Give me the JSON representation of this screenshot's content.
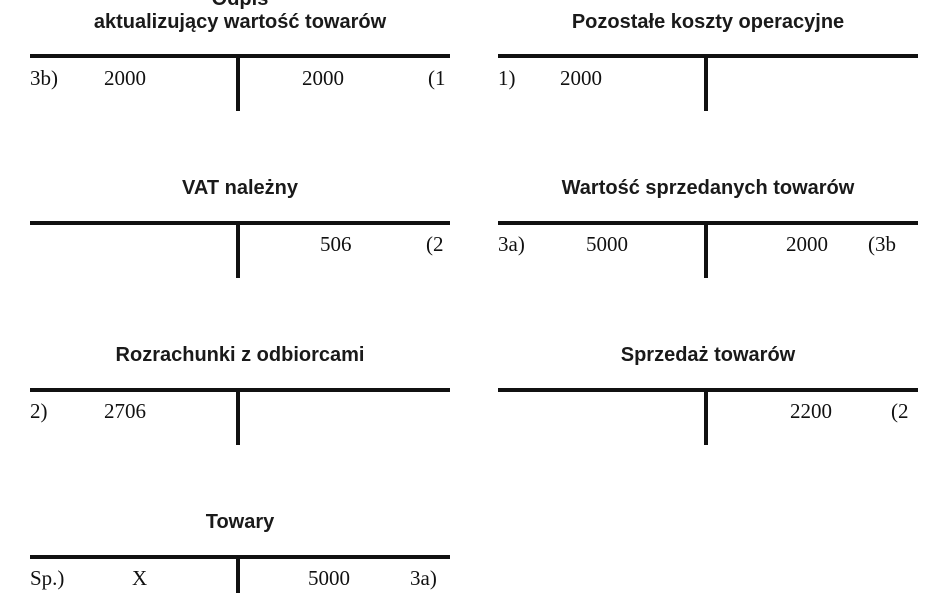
{
  "accounts": [
    {
      "title_lines": [
        "Odpis",
        "aktualizujący wartość towarów"
      ],
      "debit": {
        "ref": "3b)",
        "amount": "2000"
      },
      "credit": {
        "amount": "2000",
        "ref": "(1"
      }
    },
    {
      "title_lines": [
        "Pozostałe koszty operacyjne"
      ],
      "debit": {
        "ref": "1)",
        "amount": "2000"
      },
      "credit": {
        "amount": "",
        "ref": ""
      }
    },
    {
      "title_lines": [
        "VAT należny"
      ],
      "debit": {
        "ref": "",
        "amount": ""
      },
      "credit": {
        "amount": "506",
        "ref": "(2"
      }
    },
    {
      "title_lines": [
        "Wartość sprzedanych towarów"
      ],
      "debit": {
        "ref": "3a)",
        "amount": "5000"
      },
      "credit": {
        "amount": "2000",
        "ref": "(3b"
      }
    },
    {
      "title_lines": [
        "Rozrachunki z odbiorcami"
      ],
      "debit": {
        "ref": "2)",
        "amount": "2706"
      },
      "credit": {
        "amount": "",
        "ref": ""
      }
    },
    {
      "title_lines": [
        "Sprzedaż towarów"
      ],
      "debit": {
        "ref": "",
        "amount": ""
      },
      "credit": {
        "amount": "2200",
        "ref": "(2"
      }
    },
    {
      "title_lines": [
        "Towary"
      ],
      "debit": {
        "ref": "Sp.)",
        "amount": "X"
      },
      "credit": {
        "amount": "5000",
        "ref": "3a)"
      }
    }
  ]
}
